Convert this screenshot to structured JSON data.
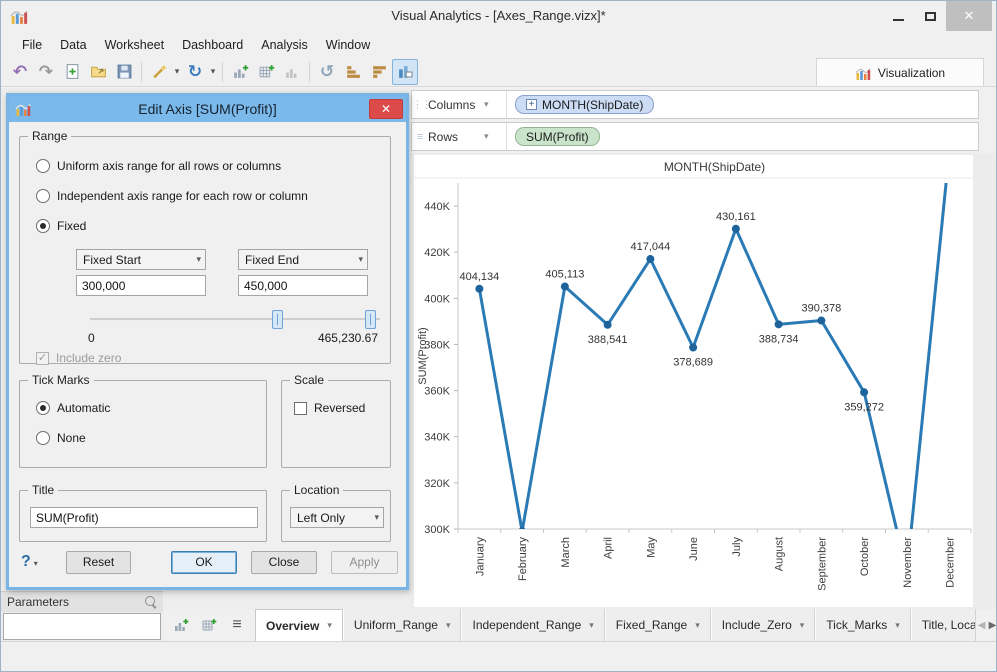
{
  "window": {
    "title": "Visual Analytics - [Axes_Range.vizx]*"
  },
  "menu": {
    "items": [
      "File",
      "Data",
      "Worksheet",
      "Dashboard",
      "Analysis",
      "Window"
    ]
  },
  "toolbar": {
    "visualization_label": "Visualization"
  },
  "glyphs": {
    "undo": "↶",
    "redo": "↷",
    "refresh": "↻",
    "rotate_left": "↺",
    "caret_down": "▾",
    "scroll_left": "◀",
    "scroll_right": "▶",
    "list": "≡",
    "check": "✓",
    "close_x": "✕",
    "minimize_dash": "–",
    "help": "?",
    "plus": "+",
    "grip_dots": "⋮⋮",
    "grip_lines": "≡"
  },
  "shelves": {
    "columns_label": "Columns",
    "columns_pill": "MONTH(ShipDate)",
    "rows_label": "Rows",
    "rows_pill": "SUM(Profit)"
  },
  "dialog": {
    "title": "Edit Axis [SUM(Profit)]",
    "range_group": {
      "legend": "Range",
      "option_uniform": "Uniform axis range for all rows or columns",
      "option_independent": "Independent axis range for each row or column",
      "option_fixed": "Fixed",
      "selected_option": "Fixed",
      "fixed_start_label": "Fixed Start",
      "fixed_end_label": "Fixed End",
      "fixed_start_value": "300,000",
      "fixed_end_value": "450,000",
      "slider_min_label": "0",
      "slider_max_label": "465,230.67",
      "include_zero_label": "Include zero",
      "include_zero_checked": true
    },
    "tick_marks_group": {
      "legend": "Tick Marks",
      "option_automatic": "Automatic",
      "option_none": "None",
      "selected_option": "Automatic"
    },
    "scale_group": {
      "legend": "Scale",
      "reversed_label": "Reversed",
      "reversed_checked": false
    },
    "title_group": {
      "legend": "Title",
      "value": "SUM(Profit)"
    },
    "location_group": {
      "legend": "Location",
      "value": "Left Only"
    },
    "buttons": {
      "reset": "Reset",
      "ok": "OK",
      "close": "Close",
      "apply": "Apply"
    }
  },
  "parameters_panel": {
    "label": "Parameters"
  },
  "tabs": {
    "active": "Overview",
    "items": [
      "Overview",
      "Uniform_Range",
      "Independent_Range",
      "Fixed_Range",
      "Include_Zero",
      "Tick_Marks",
      "Title, Location, a"
    ]
  },
  "colors": {
    "dialog_titlebar": "#7ab9ea",
    "dialog_close": "#dc4a4a",
    "chart_line": "#2a7ab5",
    "chart_point": "#1d639c",
    "pill_dimension_bg": "#cbdcf4",
    "pill_measure_bg": "#c9e4ca",
    "selected_tool_bg": "#d2e5f7"
  },
  "chart_data": {
    "type": "line",
    "title": "MONTH(ShipDate)",
    "ylabel": "SUM(Profit)",
    "categories": [
      "January",
      "February",
      "March",
      "April",
      "May",
      "June",
      "July",
      "August",
      "September",
      "October",
      "November",
      "December"
    ],
    "values": [
      404134,
      299000,
      405113,
      388541,
      417044,
      378689,
      430161,
      388734,
      390378,
      359272,
      281000,
      465230.67
    ],
    "point_labels": [
      "404,134",
      null,
      "405,113",
      "388,541",
      "417,044",
      "378,689",
      "430,161",
      "388,734",
      "390,378",
      "359,272",
      null,
      null
    ],
    "label_below": [
      false,
      false,
      false,
      true,
      false,
      true,
      false,
      true,
      false,
      true,
      false,
      false
    ],
    "ylim": [
      300000,
      450000
    ],
    "yticks": [
      {
        "v": 300000,
        "label": "300K"
      },
      {
        "v": 320000,
        "label": "320K"
      },
      {
        "v": 340000,
        "label": "340K"
      },
      {
        "v": 360000,
        "label": "360K"
      },
      {
        "v": 380000,
        "label": "380K"
      },
      {
        "v": 400000,
        "label": "400K"
      },
      {
        "v": 420000,
        "label": "420K"
      },
      {
        "v": 440000,
        "label": "440K"
      }
    ],
    "grid": false,
    "legend": "none",
    "line_color": "#2a7ab5",
    "point_color": "#1d639c"
  }
}
